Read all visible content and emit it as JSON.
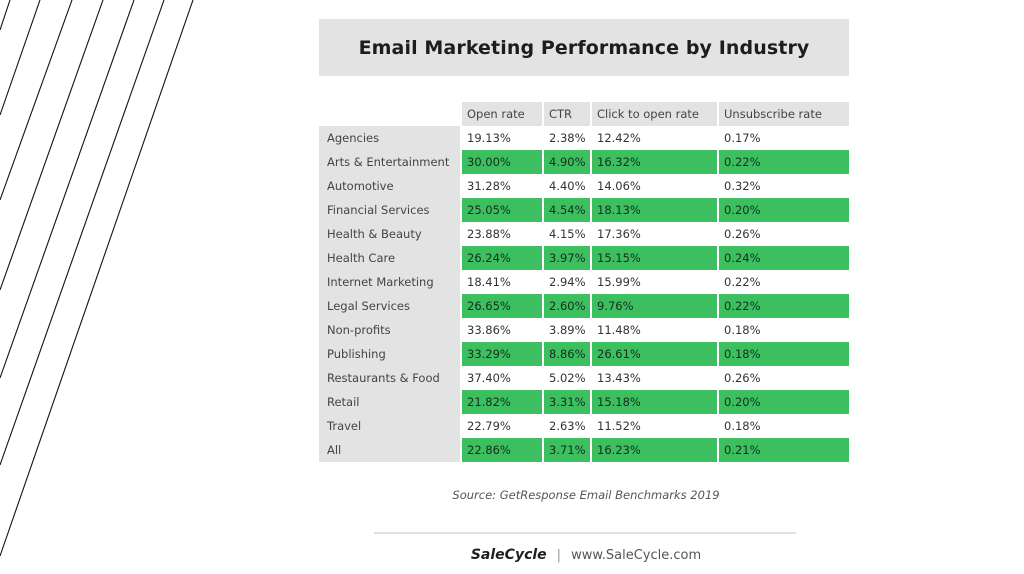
{
  "title": "Email Marketing Performance by Industry",
  "columns": [
    "Open rate",
    "CTR",
    "Click to open rate",
    "Unsubscribe rate"
  ],
  "rows": [
    {
      "industry": "Agencies",
      "open_rate": "19.13%",
      "ctr": "2.38%",
      "cto": "12.42%",
      "unsub": "0.17%"
    },
    {
      "industry": "Arts & Entertainment",
      "open_rate": "30.00%",
      "ctr": "4.90%",
      "cto": "16.32%",
      "unsub": "0.22%"
    },
    {
      "industry": "Automotive",
      "open_rate": "31.28%",
      "ctr": "4.40%",
      "cto": "14.06%",
      "unsub": "0.32%"
    },
    {
      "industry": "Financial Services",
      "open_rate": "25.05%",
      "ctr": "4.54%",
      "cto": "18.13%",
      "unsub": "0.20%"
    },
    {
      "industry": "Health & Beauty",
      "open_rate": "23.88%",
      "ctr": "4.15%",
      "cto": "17.36%",
      "unsub": "0.26%"
    },
    {
      "industry": "Health Care",
      "open_rate": "26.24%",
      "ctr": "3.97%",
      "cto": "15.15%",
      "unsub": "0.24%"
    },
    {
      "industry": "Internet Marketing",
      "open_rate": "18.41%",
      "ctr": "2.94%",
      "cto": "15.99%",
      "unsub": "0.22%"
    },
    {
      "industry": "Legal Services",
      "open_rate": "26.65%",
      "ctr": "2.60%",
      "cto": "9.76%",
      "unsub": "0.22%"
    },
    {
      "industry": "Non-profits",
      "open_rate": "33.86%",
      "ctr": "3.89%",
      "cto": "11.48%",
      "unsub": "0.18%"
    },
    {
      "industry": "Publishing",
      "open_rate": "33.29%",
      "ctr": "8.86%",
      "cto": "26.61%",
      "unsub": "0.18%"
    },
    {
      "industry": "Restaurants & Food",
      "open_rate": "37.40%",
      "ctr": "5.02%",
      "cto": "13.43%",
      "unsub": "0.26%"
    },
    {
      "industry": "Retail",
      "open_rate": "21.82%",
      "ctr": "3.31%",
      "cto": "15.18%",
      "unsub": "0.20%"
    },
    {
      "industry": "Travel",
      "open_rate": "22.79%",
      "ctr": "2.63%",
      "cto": "11.52%",
      "unsub": "0.18%"
    },
    {
      "industry": "All",
      "open_rate": "22.86%",
      "ctr": "3.71%",
      "cto": "16.23%",
      "unsub": "0.21%"
    }
  ],
  "source": "Source: GetResponse Email Benchmarks 2019",
  "footer": {
    "logo": "SaleCycle",
    "separator": "|",
    "url": "www.SaleCycle.com"
  },
  "colors": {
    "highlight_row": "#3bbf5f",
    "label_bg": "#e3e3e3"
  }
}
